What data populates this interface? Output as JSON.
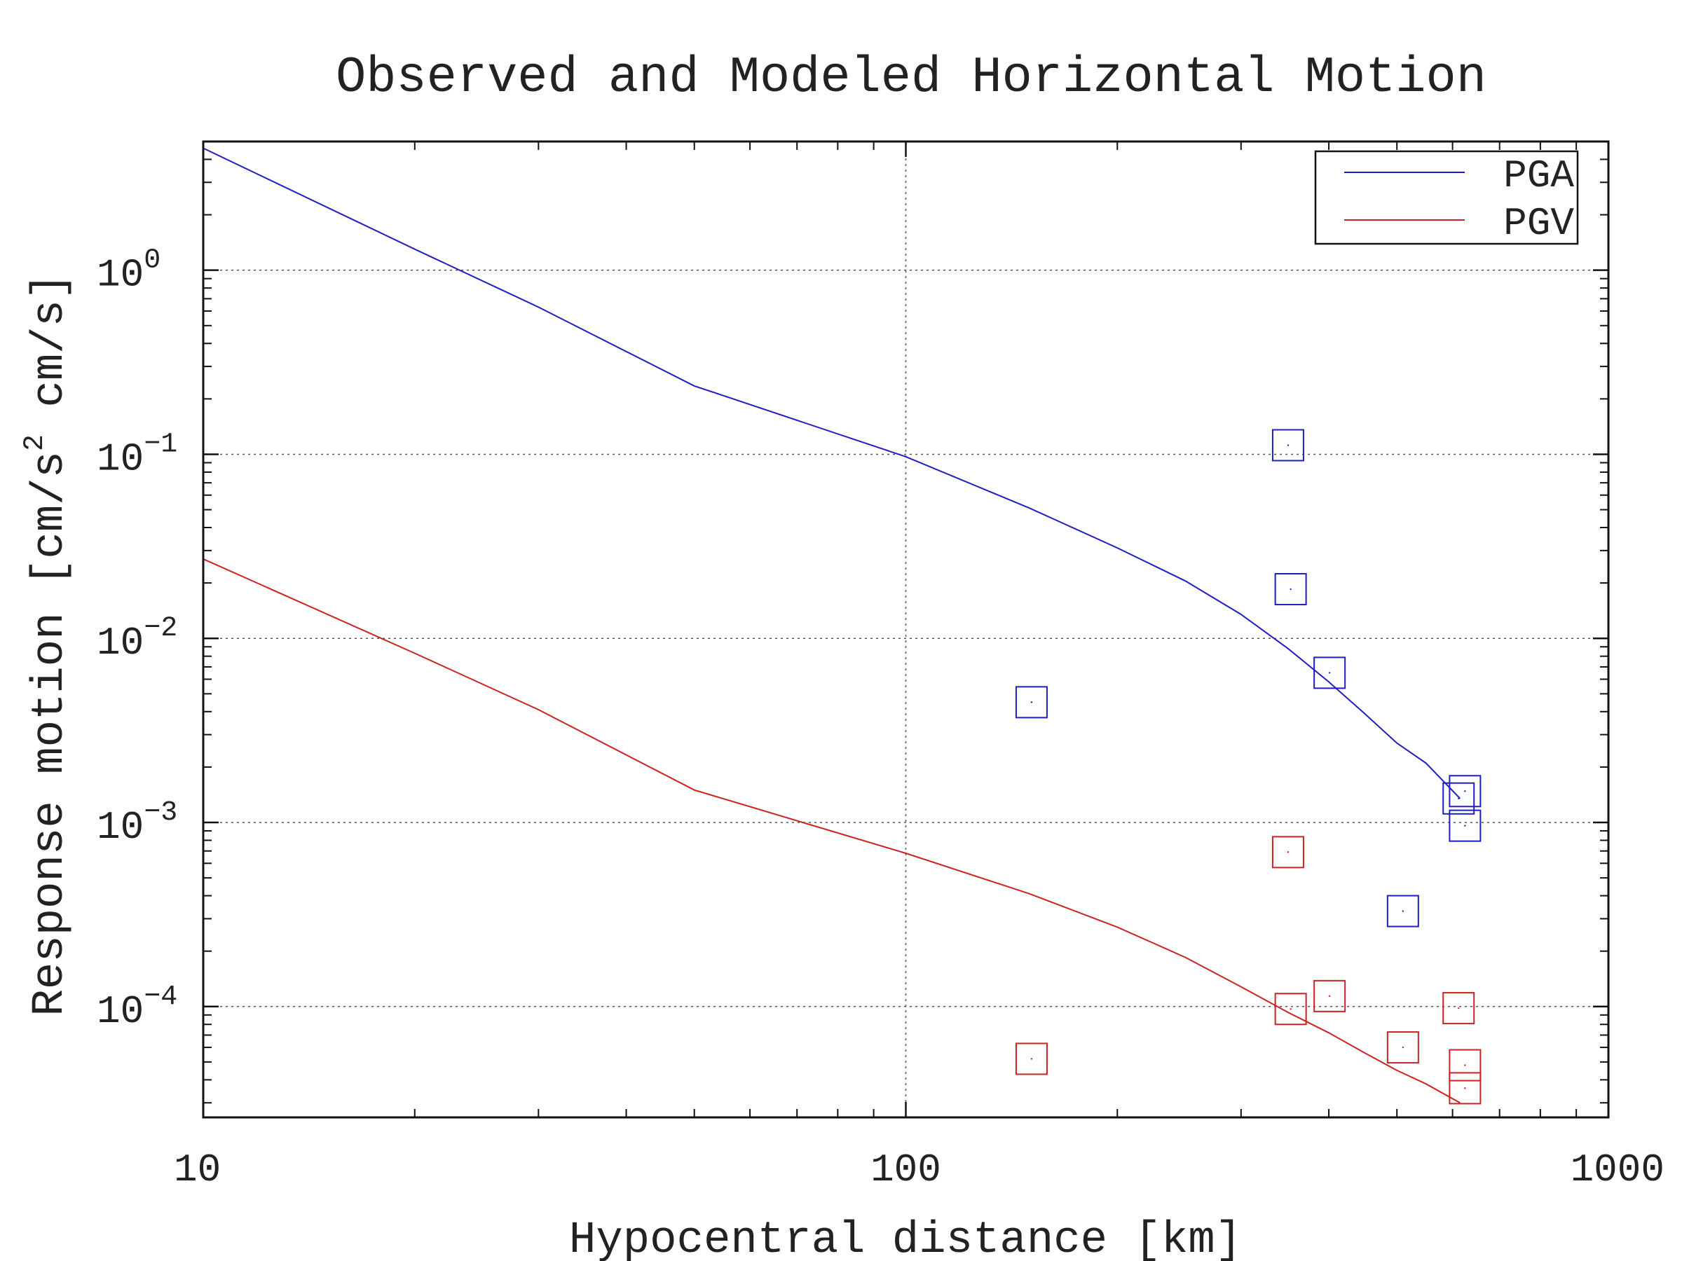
{
  "chart_data": {
    "type": "line",
    "title": "Observed and Modeled Horizontal Motion",
    "xlabel": "Hypocentral distance [km]",
    "ylabel": {
      "main": "Response motion [cm/s",
      "exponent": "2",
      "rest": " cm/s]"
    },
    "x_scale": "log",
    "y_scale": "log",
    "xlim": [
      10,
      1000
    ],
    "ylim": [
      2.5e-05,
      5
    ],
    "grid": true,
    "legend_position": "top-right",
    "x_ticks": [
      {
        "value": 10,
        "label": "10"
      },
      {
        "value": 100,
        "label": "100"
      },
      {
        "value": 1000,
        "label": "1000"
      }
    ],
    "y_ticks": [
      {
        "value": 1,
        "base": "10",
        "exp": "0"
      },
      {
        "value": 0.1,
        "base": "10",
        "exp": "−1"
      },
      {
        "value": 0.01,
        "base": "10",
        "exp": "−2"
      },
      {
        "value": 0.001,
        "base": "10",
        "exp": "−3"
      },
      {
        "value": 0.0001,
        "base": "10",
        "exp": "−4"
      }
    ],
    "series": [
      {
        "name": "PGA",
        "color": "#1f1fbf",
        "line": {
          "x": [
            10,
            20,
            30,
            50,
            100,
            150,
            200,
            250,
            300,
            350,
            400,
            450,
            500,
            550,
            615
          ],
          "y": [
            4.6,
            1.3,
            0.63,
            0.235,
            0.097,
            0.051,
            0.031,
            0.0205,
            0.0135,
            0.0088,
            0.0058,
            0.0039,
            0.0027,
            0.0021,
            0.00135
          ]
        },
        "observed": {
          "x": [
            151,
            350,
            353,
            401,
            510,
            612,
            625,
            625
          ],
          "y": [
            0.0045,
            0.112,
            0.0185,
            0.0065,
            0.00033,
            0.00135,
            0.00148,
            0.00096
          ]
        }
      },
      {
        "name": "PGV",
        "color": "#cc2222",
        "line": {
          "x": [
            10,
            20,
            30,
            50,
            100,
            150,
            200,
            250,
            300,
            350,
            400,
            450,
            500,
            550,
            615
          ],
          "y": [
            0.027,
            0.0083,
            0.0041,
            0.0015,
            0.00068,
            0.00041,
            0.00027,
            0.000185,
            0.000128,
            9.3e-05,
            7.2e-05,
            5.6e-05,
            4.5e-05,
            3.8e-05,
            3e-05
          ]
        },
        "observed": {
          "x": [
            151,
            350,
            353,
            401,
            510,
            612,
            625,
            625
          ],
          "y": [
            5.2e-05,
            0.00069,
            9.7e-05,
            0.000114,
            6e-05,
            9.8e-05,
            4.8e-05,
            3.6e-05
          ]
        }
      }
    ]
  }
}
